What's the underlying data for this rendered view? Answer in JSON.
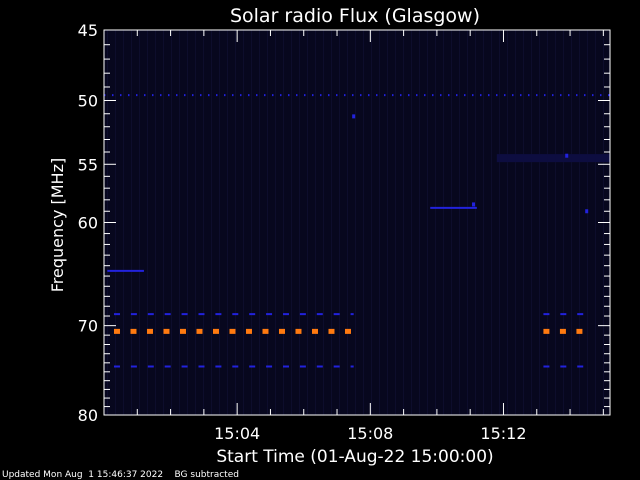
{
  "footer": {
    "updated": "Updated Mon Aug  1 15:46:37 2022",
    "note": "BG subtracted"
  },
  "chart_data": {
    "type": "heatmap",
    "title": "Solar radio Flux (Glasgow)",
    "xlabel": "Start Time (01-Aug-22 15:00:00)",
    "ylabel": "Frequency [MHz]",
    "x_unit": "minutes after 15:00:00",
    "xlim": [
      0.0,
      15.2
    ],
    "ylim": [
      45,
      80
    ],
    "y_scale": "log",
    "y_inverted": true,
    "x_ticks": [
      {
        "value": 4,
        "label": "15:04"
      },
      {
        "value": 8,
        "label": "15:08"
      },
      {
        "value": 12,
        "label": "15:12"
      }
    ],
    "y_ticks": [
      45,
      50,
      55,
      60,
      70,
      80
    ],
    "grid": false,
    "colors": {
      "background": "#07071e",
      "weak": "#2222dd",
      "strong": "#ff7a10",
      "axes": "#ffffff"
    },
    "features": [
      {
        "name": "dotted-line-50",
        "freq_mhz": 49.6,
        "t_start": 0.0,
        "t_end": 15.2,
        "level": "weak",
        "style": "dotted"
      },
      {
        "name": "dash-line-68",
        "freq_mhz": 68.8,
        "t_start": 0.3,
        "t_end": 7.5,
        "level": "weak",
        "style": "dashed"
      },
      {
        "name": "dash-line-68-b",
        "freq_mhz": 68.8,
        "t_start": 13.2,
        "t_end": 14.6,
        "level": "weak",
        "style": "dashed"
      },
      {
        "name": "orange-line-70",
        "freq_mhz": 70.6,
        "t_start": 0.3,
        "t_end": 7.5,
        "level": "strong",
        "style": "dashed"
      },
      {
        "name": "orange-line-70-b",
        "freq_mhz": 70.6,
        "t_start": 13.2,
        "t_end": 14.6,
        "level": "strong",
        "style": "dashed"
      },
      {
        "name": "dash-line-74",
        "freq_mhz": 74.4,
        "t_start": 0.3,
        "t_end": 7.5,
        "level": "weak",
        "style": "dashed"
      },
      {
        "name": "dash-line-74-b",
        "freq_mhz": 74.4,
        "t_start": 13.2,
        "t_end": 14.6,
        "level": "weak",
        "style": "dashed"
      },
      {
        "name": "segment-64",
        "freq_mhz": 64.5,
        "t_start": 0.1,
        "t_end": 1.2,
        "level": "weak",
        "style": "solid"
      },
      {
        "name": "segment-59",
        "freq_mhz": 58.7,
        "t_start": 9.8,
        "t_end": 11.2,
        "level": "weak",
        "style": "solid"
      },
      {
        "name": "segment-54",
        "freq_mhz": 54.5,
        "t_start": 11.8,
        "t_end": 15.2,
        "level": "faint",
        "style": "solid"
      }
    ],
    "spots": [
      {
        "name": "spot-51",
        "freq_mhz": 51.2,
        "t": 7.5
      },
      {
        "name": "spot-58",
        "freq_mhz": 58.4,
        "t": 11.1
      },
      {
        "name": "spot-54",
        "freq_mhz": 54.3,
        "t": 13.9
      },
      {
        "name": "spot-59",
        "freq_mhz": 59.0,
        "t": 14.5
      }
    ]
  }
}
